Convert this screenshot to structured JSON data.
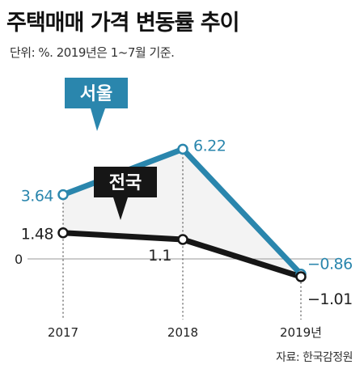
{
  "title": "주택매매 가격 변동률 추이",
  "subtitle": "단위: %. 2019년은 1~7월 기준.",
  "source": "자료: 한국감정원",
  "colors": {
    "seoul": "#2a86ad",
    "seoul_fill": "#f3f3f3",
    "national": "#161616",
    "grid": "#999999",
    "text_seoul": "#2a86ad",
    "text": "#222222"
  },
  "chart_data": {
    "type": "line",
    "categories": [
      "2017",
      "2018",
      "2019년"
    ],
    "series": [
      {
        "name": "서울",
        "values": [
          3.64,
          6.22,
          -0.86
        ],
        "value_labels": [
          "3.64",
          "6.22",
          "−0.86"
        ]
      },
      {
        "name": "전국",
        "values": [
          1.48,
          1.1,
          -1.01
        ],
        "value_labels": [
          "1.48",
          "1.1",
          "−1.01"
        ]
      }
    ],
    "zero_label": "0",
    "grid": false,
    "legend": "inline labels"
  }
}
